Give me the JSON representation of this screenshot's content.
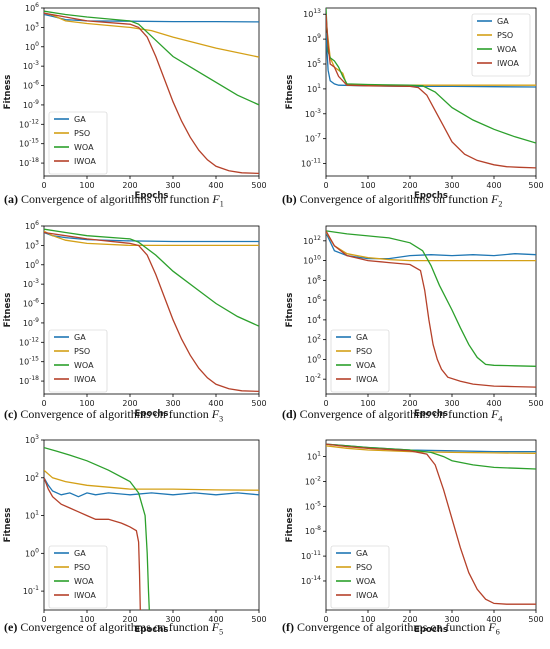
{
  "figure": {
    "colors": {
      "GA": "#1f77b4",
      "PSO": "#d4a017",
      "WOA": "#2ca02c",
      "IWOA": "#b5412a"
    }
  },
  "chart_data": [
    {
      "id": "F1",
      "type": "line",
      "caption": {
        "letter": "(a)",
        "text": "Convergence of algorithms on function",
        "fn": "F",
        "sub": "1"
      },
      "xlabel": "Epochs",
      "ylabel": "Fitness",
      "xlim": [
        0,
        500
      ],
      "xticks": [
        "0",
        "100",
        "200",
        "300",
        "400",
        "500"
      ],
      "ylog": true,
      "ylim": [
        -20,
        6
      ],
      "yticks": [
        {
          "e": 6,
          "label": "10^6"
        },
        {
          "e": 3,
          "label": "10^3"
        },
        {
          "e": 0,
          "label": "10^0"
        },
        {
          "e": -3,
          "label": "10^-3"
        },
        {
          "e": -6,
          "label": "10^-6"
        },
        {
          "e": -9,
          "label": "10^-9"
        },
        {
          "e": -12,
          "label": "10^-12"
        },
        {
          "e": -15,
          "label": "10^-15"
        },
        {
          "e": -18,
          "label": "10^-18"
        }
      ],
      "legend": "bottom-left",
      "series": [
        {
          "name": "GA",
          "x": [
            0,
            20,
            50,
            100,
            200,
            300,
            400,
            500
          ],
          "y": [
            5,
            4.7,
            4.2,
            4.0,
            3.95,
            3.9,
            3.9,
            3.85
          ]
        },
        {
          "name": "PSO",
          "x": [
            0,
            20,
            50,
            100,
            200,
            250,
            300,
            400,
            500
          ],
          "y": [
            5.2,
            4.9,
            4.0,
            3.6,
            3.0,
            2.5,
            1.5,
            -0.2,
            -1.6
          ]
        },
        {
          "name": "WOA",
          "x": [
            0,
            50,
            100,
            200,
            220,
            260,
            300,
            350,
            400,
            450,
            500
          ],
          "y": [
            5.5,
            5.0,
            4.6,
            4.0,
            3.5,
            1.0,
            -1.5,
            -3.5,
            -5.5,
            -7.5,
            -9.0
          ]
        },
        {
          "name": "IWOA",
          "x": [
            0,
            50,
            100,
            200,
            220,
            240,
            260,
            280,
            300,
            320,
            340,
            360,
            380,
            400,
            430,
            460,
            500
          ],
          "y": [
            5.2,
            4.6,
            4.0,
            3.5,
            3.0,
            1.5,
            -1.5,
            -5,
            -8.5,
            -11.5,
            -14,
            -16,
            -17.5,
            -18.5,
            -19.2,
            -19.5,
            -19.6
          ]
        }
      ]
    },
    {
      "id": "F2",
      "type": "line",
      "caption": {
        "letter": "(b)",
        "text": "Convergence of algorithms on function",
        "fn": "F",
        "sub": "2"
      },
      "xlabel": "Epochs",
      "ylabel": "Fitness",
      "xlim": [
        0,
        500
      ],
      "xticks": [
        "0",
        "100",
        "200",
        "300",
        "400",
        "500"
      ],
      "ylog": true,
      "ylim": [
        -13,
        14
      ],
      "yticks": [
        {
          "e": 13,
          "label": "10^13"
        },
        {
          "e": 9,
          "label": "10^9"
        },
        {
          "e": 5,
          "label": "10^5"
        },
        {
          "e": 1,
          "label": "10^1"
        },
        {
          "e": -3,
          "label": "10^-3"
        },
        {
          "e": -7,
          "label": "10^-7"
        },
        {
          "e": -11,
          "label": "10^-11"
        }
      ],
      "legend": "top-right",
      "series": [
        {
          "name": "GA",
          "x": [
            0,
            5,
            10,
            20,
            30,
            100,
            200,
            300,
            400,
            500
          ],
          "y": [
            10,
            4,
            2.3,
            1.8,
            1.6,
            1.5,
            1.4,
            1.4,
            1.35,
            1.3
          ]
        },
        {
          "name": "PSO",
          "x": [
            0,
            10,
            20,
            30,
            40,
            45,
            50,
            100,
            200,
            300,
            400,
            500
          ],
          "y": [
            12,
            6,
            4.5,
            4,
            3.5,
            2.5,
            1.6,
            1.6,
            1.6,
            1.6,
            1.6,
            1.6
          ]
        },
        {
          "name": "WOA",
          "x": [
            0,
            5,
            10,
            20,
            30,
            40,
            50,
            100,
            200,
            230,
            260,
            300,
            350,
            400,
            450,
            500
          ],
          "y": [
            14,
            7,
            6,
            5.5,
            4.5,
            3,
            1.8,
            1.7,
            1.6,
            1.5,
            0.5,
            -2,
            -4,
            -5.5,
            -6.7,
            -7.7
          ]
        },
        {
          "name": "IWOA",
          "x": [
            0,
            5,
            10,
            20,
            30,
            50,
            100,
            200,
            220,
            240,
            260,
            280,
            300,
            330,
            360,
            400,
            430,
            460,
            500
          ],
          "y": [
            13,
            8,
            5,
            4.5,
            3,
            1.6,
            1.5,
            1.4,
            1.2,
            0,
            -2.5,
            -5,
            -7.5,
            -9.5,
            -10.5,
            -11.2,
            -11.5,
            -11.6,
            -11.7
          ]
        }
      ]
    },
    {
      "id": "F3",
      "type": "line",
      "caption": {
        "letter": "(c)",
        "text": "Convergence of algorithms on function",
        "fn": "F",
        "sub": "3"
      },
      "xlabel": "Epochs",
      "ylabel": "Fitness",
      "xlim": [
        0,
        500
      ],
      "xticks": [
        "0",
        "100",
        "200",
        "300",
        "400",
        "500"
      ],
      "ylog": true,
      "ylim": [
        -20,
        6
      ],
      "yticks": [
        {
          "e": 6,
          "label": "10^6"
        },
        {
          "e": 3,
          "label": "10^3"
        },
        {
          "e": 0,
          "label": "10^0"
        },
        {
          "e": -3,
          "label": "10^-3"
        },
        {
          "e": -6,
          "label": "10^-6"
        },
        {
          "e": -9,
          "label": "10^-9"
        },
        {
          "e": -12,
          "label": "10^-12"
        },
        {
          "e": -15,
          "label": "10^-15"
        },
        {
          "e": -18,
          "label": "10^-18"
        }
      ],
      "legend": "bottom-left",
      "series": [
        {
          "name": "GA",
          "x": [
            0,
            20,
            50,
            100,
            200,
            300,
            400,
            500
          ],
          "y": [
            5,
            4.5,
            4.2,
            3.9,
            3.7,
            3.6,
            3.6,
            3.6
          ]
        },
        {
          "name": "PSO",
          "x": [
            0,
            20,
            50,
            100,
            200,
            300,
            400,
            500
          ],
          "y": [
            5.2,
            4.5,
            3.8,
            3.3,
            3.0,
            3.0,
            3.0,
            3.0
          ]
        },
        {
          "name": "WOA",
          "x": [
            0,
            50,
            100,
            200,
            220,
            260,
            300,
            350,
            400,
            450,
            500
          ],
          "y": [
            5.5,
            5.0,
            4.5,
            4.0,
            3.5,
            1.5,
            -1,
            -3.5,
            -6,
            -8,
            -9.5
          ]
        },
        {
          "name": "IWOA",
          "x": [
            0,
            50,
            100,
            200,
            220,
            240,
            260,
            280,
            300,
            320,
            340,
            360,
            380,
            400,
            430,
            460,
            500
          ],
          "y": [
            5.0,
            4.5,
            4.0,
            3.3,
            3.0,
            1.5,
            -1.5,
            -5,
            -8.5,
            -11.5,
            -14,
            -16,
            -17.5,
            -18.5,
            -19.2,
            -19.5,
            -19.6
          ]
        }
      ]
    },
    {
      "id": "F4",
      "type": "line",
      "caption": {
        "letter": "(d)",
        "text": "Convergence of algorithms on function",
        "fn": "F",
        "sub": "4"
      },
      "xlabel": "Epochs",
      "ylabel": "Fitness",
      "xlim": [
        0,
        500
      ],
      "xticks": [
        "0",
        "100",
        "200",
        "300",
        "400",
        "500"
      ],
      "ylog": true,
      "ylim": [
        -3.5,
        13.5
      ],
      "yticks": [
        {
          "e": 12,
          "label": "10^12"
        },
        {
          "e": 10,
          "label": "10^10"
        },
        {
          "e": 8,
          "label": "10^8"
        },
        {
          "e": 6,
          "label": "10^6"
        },
        {
          "e": 4,
          "label": "10^4"
        },
        {
          "e": 2,
          "label": "10^2"
        },
        {
          "e": 0,
          "label": "10^0"
        },
        {
          "e": -2,
          "label": "10^-2"
        }
      ],
      "legend": "bottom-left",
      "series": [
        {
          "name": "GA",
          "x": [
            0,
            20,
            50,
            100,
            150,
            200,
            250,
            300,
            350,
            400,
            450,
            500
          ],
          "y": [
            12.8,
            11.0,
            10.5,
            10.2,
            10.2,
            10.5,
            10.6,
            10.5,
            10.6,
            10.5,
            10.7,
            10.6
          ]
        },
        {
          "name": "PSO",
          "x": [
            0,
            20,
            50,
            100,
            150,
            200,
            300,
            400,
            500
          ],
          "y": [
            12.9,
            11.5,
            10.7,
            10.3,
            10.1,
            10.0,
            10.0,
            10.0,
            10.0
          ]
        },
        {
          "name": "WOA",
          "x": [
            0,
            50,
            100,
            150,
            200,
            230,
            250,
            270,
            300,
            320,
            340,
            360,
            380,
            400,
            450,
            500
          ],
          "y": [
            13,
            12.7,
            12.5,
            12.3,
            11.8,
            11.0,
            9.5,
            7.5,
            5,
            3.2,
            1.5,
            0.2,
            -0.5,
            -0.6,
            -0.65,
            -0.7
          ]
        },
        {
          "name": "IWOA",
          "x": [
            0,
            20,
            50,
            100,
            150,
            200,
            225,
            235,
            245,
            255,
            265,
            275,
            290,
            320,
            350,
            400,
            450,
            500
          ],
          "y": [
            13,
            11.5,
            10.5,
            10,
            9.8,
            9.6,
            9.0,
            7,
            4,
            1.5,
            0,
            -1,
            -1.8,
            -2.2,
            -2.5,
            -2.7,
            -2.75,
            -2.8
          ]
        }
      ]
    },
    {
      "id": "F5",
      "type": "line",
      "caption": {
        "letter": "(e)",
        "text": "Convergence of algorithms on function",
        "fn": "F",
        "sub": "5"
      },
      "xlabel": "Epochs",
      "ylabel": "Fitness",
      "xlim": [
        0,
        500
      ],
      "xticks": [
        "0",
        "100",
        "200",
        "300",
        "400",
        "500"
      ],
      "ylog": true,
      "ylim": [
        -1.5,
        3
      ],
      "yticks": [
        {
          "e": 3,
          "label": "10^3"
        },
        {
          "e": 2,
          "label": "10^2"
        },
        {
          "e": 1,
          "label": "10^1"
        },
        {
          "e": 0,
          "label": "10^0"
        },
        {
          "e": -1,
          "label": "10^-1"
        }
      ],
      "legend": "bottom-left",
      "series": [
        {
          "name": "GA",
          "x": [
            0,
            10,
            20,
            40,
            60,
            80,
            100,
            120,
            150,
            200,
            250,
            300,
            350,
            400,
            450,
            500
          ],
          "y": [
            2.0,
            1.8,
            1.65,
            1.55,
            1.6,
            1.5,
            1.6,
            1.55,
            1.6,
            1.55,
            1.6,
            1.55,
            1.6,
            1.55,
            1.6,
            1.55
          ]
        },
        {
          "name": "PSO",
          "x": [
            0,
            20,
            50,
            100,
            150,
            200,
            250,
            300,
            400,
            500
          ],
          "y": [
            2.2,
            2.0,
            1.9,
            1.8,
            1.75,
            1.7,
            1.7,
            1.7,
            1.68,
            1.67
          ]
        },
        {
          "name": "WOA",
          "x": [
            0,
            30,
            60,
            100,
            150,
            200,
            220,
            235,
            240,
            243,
            245,
            247
          ],
          "y": [
            2.8,
            2.7,
            2.6,
            2.45,
            2.2,
            1.9,
            1.6,
            1.0,
            0,
            -1,
            -1.5,
            -1.5
          ]
        },
        {
          "name": "IWOA",
          "x": [
            0,
            10,
            20,
            40,
            60,
            80,
            100,
            120,
            150,
            180,
            200,
            215,
            220,
            222,
            224,
            226
          ],
          "y": [
            2.0,
            1.7,
            1.5,
            1.3,
            1.2,
            1.1,
            1.0,
            0.9,
            0.9,
            0.8,
            0.7,
            0.6,
            0.3,
            -0.5,
            -1.5,
            -1.5
          ]
        }
      ]
    },
    {
      "id": "F6",
      "type": "line",
      "caption": {
        "letter": "(f)",
        "text": "Convergence of algorithms on function",
        "fn": "F",
        "sub": "6"
      },
      "xlabel": "Epochs",
      "ylabel": "Fitness",
      "xlim": [
        0,
        500
      ],
      "xticks": [
        "0",
        "100",
        "200",
        "300",
        "400",
        "500"
      ],
      "ylog": true,
      "ylim": [
        -17.5,
        3
      ],
      "yticks": [
        {
          "e": 1,
          "label": "10^1"
        },
        {
          "e": -2,
          "label": "10^-2"
        },
        {
          "e": -5,
          "label": "10^-5"
        },
        {
          "e": -8,
          "label": "10^-8"
        },
        {
          "e": -11,
          "label": "10^-11"
        },
        {
          "e": -14,
          "label": "10^-14"
        }
      ],
      "legend": "bottom-left",
      "series": [
        {
          "name": "GA",
          "x": [
            0,
            50,
            100,
            200,
            300,
            400,
            500
          ],
          "y": [
            2.5,
            2.3,
            2.1,
            1.8,
            1.7,
            1.6,
            1.6
          ]
        },
        {
          "name": "PSO",
          "x": [
            0,
            50,
            100,
            200,
            300,
            400,
            500
          ],
          "y": [
            2.3,
            2.0,
            1.8,
            1.6,
            1.5,
            1.45,
            1.4
          ]
        },
        {
          "name": "WOA",
          "x": [
            0,
            50,
            100,
            200,
            250,
            280,
            300,
            350,
            400,
            450,
            500
          ],
          "y": [
            2.5,
            2.3,
            2.1,
            1.8,
            1.5,
            1.0,
            0.5,
            0,
            -0.3,
            -0.4,
            -0.5
          ]
        },
        {
          "name": "IWOA",
          "x": [
            0,
            50,
            100,
            200,
            240,
            260,
            280,
            300,
            320,
            340,
            360,
            380,
            400,
            430,
            460,
            500
          ],
          "y": [
            2.5,
            2.2,
            2.0,
            1.7,
            1.3,
            0,
            -3,
            -6.5,
            -10,
            -13,
            -15,
            -16.2,
            -16.7,
            -16.8,
            -16.8,
            -16.8
          ]
        }
      ]
    }
  ]
}
